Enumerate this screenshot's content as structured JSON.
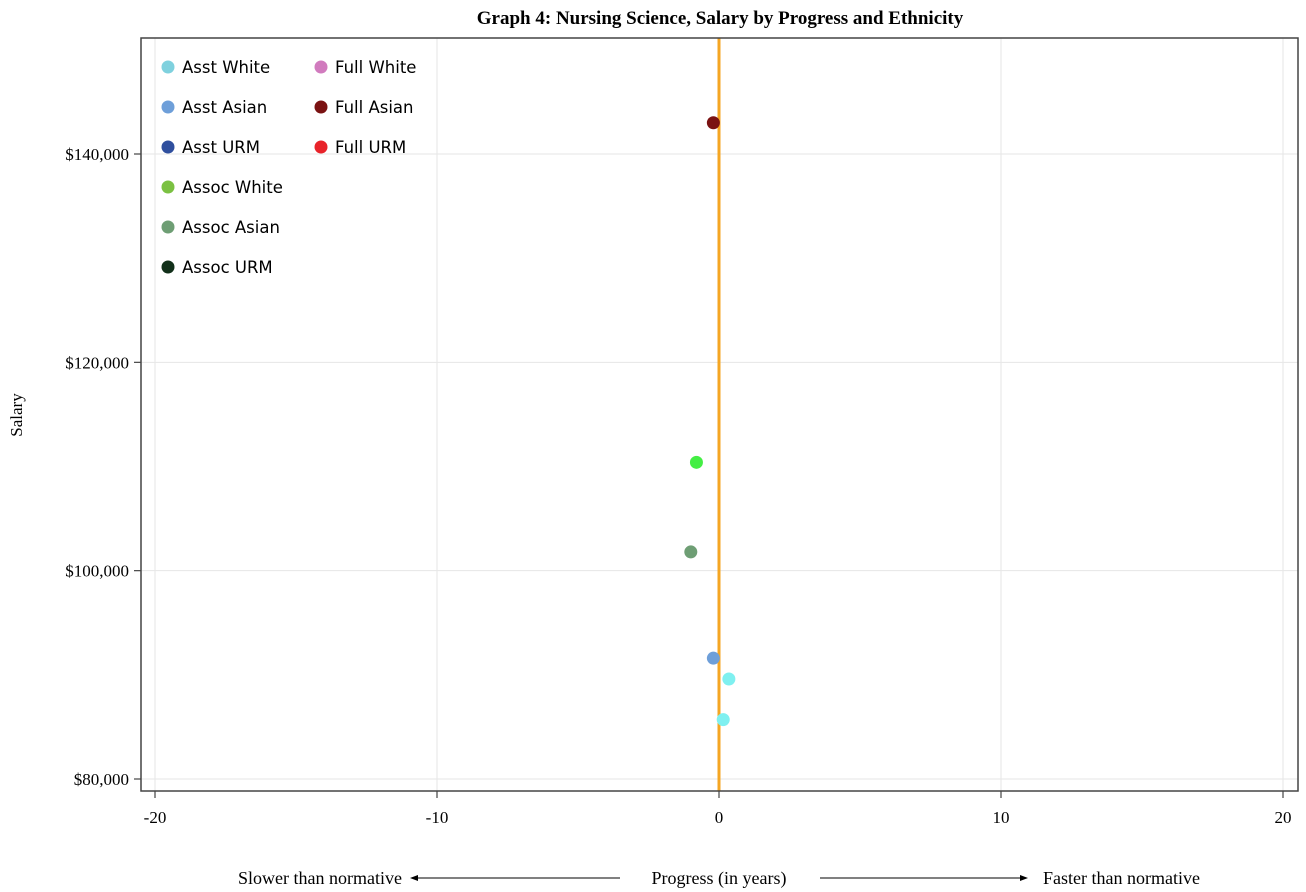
{
  "chart_data": {
    "type": "scatter",
    "title": "Graph 4: Nursing Science, Salary by Progress and Ethnicity",
    "ylabel": "Salary",
    "xlabel": "Progress (in years)",
    "xlabel_left": "Slower than normative",
    "xlabel_right": "Faster than normative",
    "xlim": [
      -20,
      20
    ],
    "ylim": [
      79000,
      151000
    ],
    "x_ticks": [
      -20,
      -10,
      0,
      10,
      20
    ],
    "x_tick_labels": [
      "-20",
      "-10",
      "0",
      "10",
      "20"
    ],
    "y_ticks": [
      80000,
      100000,
      120000,
      140000
    ],
    "y_tick_labels": [
      "$80,000",
      "$100,000",
      "$120,000",
      "$140,000"
    ],
    "grid": true,
    "reference_line": {
      "x": 0,
      "color": "#F5A623"
    },
    "legend_position": "top-left",
    "legend": [
      {
        "name": "Asst White",
        "color": "#7FD1DE"
      },
      {
        "name": "Asst Asian",
        "color": "#6E9FD9"
      },
      {
        "name": "Asst URM",
        "color": "#2F4F9E"
      },
      {
        "name": "Assoc White",
        "color": "#7BC142"
      },
      {
        "name": "Assoc Asian",
        "color": "#6E9E74"
      },
      {
        "name": "Assoc URM",
        "color": "#12301A"
      },
      {
        "name": "Full White",
        "color": "#D17BBE"
      },
      {
        "name": "Full Asian",
        "color": "#7A1212"
      },
      {
        "name": "Full URM",
        "color": "#E8232A"
      }
    ],
    "series": [
      {
        "name": "Full Asian",
        "color": "#7A1212",
        "points": [
          {
            "x": -0.2,
            "y": 143000
          }
        ]
      },
      {
        "name": "Assoc White",
        "color": "#44EE44",
        "points": [
          {
            "x": -0.8,
            "y": 110400
          }
        ]
      },
      {
        "name": "Assoc Asian",
        "color": "#6E9E74",
        "points": [
          {
            "x": -1.0,
            "y": 101800
          }
        ]
      },
      {
        "name": "Asst Asian",
        "color": "#6E9FD9",
        "points": [
          {
            "x": -0.2,
            "y": 91600
          }
        ]
      },
      {
        "name": "Asst White",
        "color": "#7FF0F0",
        "points": [
          {
            "x": 0.35,
            "y": 89600
          },
          {
            "x": 0.15,
            "y": 85700
          }
        ]
      }
    ]
  }
}
